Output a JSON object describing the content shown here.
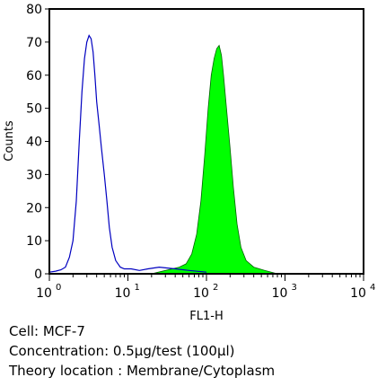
{
  "chart_data": {
    "type": "area",
    "xlabel": "FL1-H",
    "ylabel": "Counts",
    "xscale": "log",
    "xlim": [
      1,
      10000
    ],
    "ylim": [
      0,
      80
    ],
    "x_ticks": [
      {
        "base": "10",
        "exp": "0"
      },
      {
        "base": "10",
        "exp": "1"
      },
      {
        "base": "10",
        "exp": "2"
      },
      {
        "base": "10",
        "exp": "3"
      },
      {
        "base": "10",
        "exp": "4"
      }
    ],
    "y_ticks": [
      "0",
      "10",
      "20",
      "30",
      "40",
      "50",
      "60",
      "70",
      "80"
    ],
    "y_tick_values": [
      0,
      10,
      20,
      30,
      40,
      50,
      60,
      70,
      80
    ],
    "grid": false,
    "series": [
      {
        "style": "outline",
        "color": "#0000c0",
        "points": [
          [
            1.0,
            0.5
          ],
          [
            1.2,
            0.8
          ],
          [
            1.4,
            1.2
          ],
          [
            1.6,
            2
          ],
          [
            1.8,
            5
          ],
          [
            2.0,
            10
          ],
          [
            2.2,
            22
          ],
          [
            2.4,
            40
          ],
          [
            2.6,
            55
          ],
          [
            2.8,
            65
          ],
          [
            3.0,
            70
          ],
          [
            3.2,
            72
          ],
          [
            3.4,
            71
          ],
          [
            3.6,
            67
          ],
          [
            3.8,
            60
          ],
          [
            4.0,
            52
          ],
          [
            4.3,
            45
          ],
          [
            4.6,
            38
          ],
          [
            5.0,
            30
          ],
          [
            5.4,
            22
          ],
          [
            5.8,
            14
          ],
          [
            6.3,
            8
          ],
          [
            7.0,
            4
          ],
          [
            8.0,
            2
          ],
          [
            9.0,
            1.5
          ],
          [
            11,
            1.5
          ],
          [
            14,
            1
          ],
          [
            18,
            1.5
          ],
          [
            25,
            2
          ],
          [
            40,
            1.5
          ],
          [
            60,
            1
          ],
          [
            100,
            0.5
          ]
        ]
      },
      {
        "style": "filled",
        "color": "#00ff00",
        "points": [
          [
            20,
            0
          ],
          [
            30,
            1
          ],
          [
            45,
            2
          ],
          [
            55,
            3
          ],
          [
            65,
            6
          ],
          [
            75,
            12
          ],
          [
            85,
            22
          ],
          [
            95,
            36
          ],
          [
            105,
            50
          ],
          [
            115,
            60
          ],
          [
            125,
            65
          ],
          [
            135,
            68
          ],
          [
            145,
            69
          ],
          [
            155,
            66
          ],
          [
            165,
            60
          ],
          [
            180,
            50
          ],
          [
            200,
            38
          ],
          [
            220,
            26
          ],
          [
            245,
            15
          ],
          [
            275,
            8
          ],
          [
            320,
            4
          ],
          [
            400,
            2
          ],
          [
            550,
            1
          ],
          [
            800,
            0
          ]
        ]
      }
    ]
  },
  "caption": {
    "cell": "Cell: MCF-7",
    "concentration": "Concentration: 0.5µg/test (100µl)",
    "location": "Theory location : Membrane/Cytoplasm"
  }
}
